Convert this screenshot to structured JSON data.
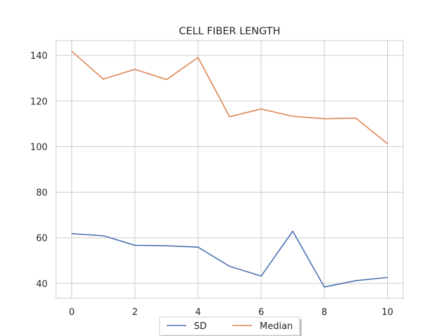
{
  "chart_data": {
    "type": "line",
    "title": "CELL FIBER LENGTH",
    "xlabel": "",
    "ylabel": "",
    "x": [
      0,
      1,
      2,
      3,
      4,
      5,
      6,
      7,
      8,
      9,
      10
    ],
    "series": [
      {
        "name": "SD",
        "color": "#4c72b0",
        "values": [
          61.8,
          60.9,
          56.7,
          56.5,
          55.9,
          47.5,
          43.2,
          62.9,
          38.4,
          41.2,
          42.6
        ]
      },
      {
        "name": "Median",
        "color": "#dd8452",
        "values": [
          141.8,
          129.6,
          133.9,
          129.4,
          139.1,
          113.1,
          116.5,
          113.3,
          112.2,
          112.5,
          101.3
        ]
      }
    ],
    "xlim": [
      -0.5,
      10.5
    ],
    "ylim": [
      33.5,
      146.5
    ],
    "xticks": [
      "0",
      "2",
      "4",
      "6",
      "8",
      "10"
    ],
    "yticks": [
      "40",
      "60",
      "80",
      "100",
      "120",
      "140"
    ],
    "grid": true,
    "legend": "bottom-center"
  }
}
